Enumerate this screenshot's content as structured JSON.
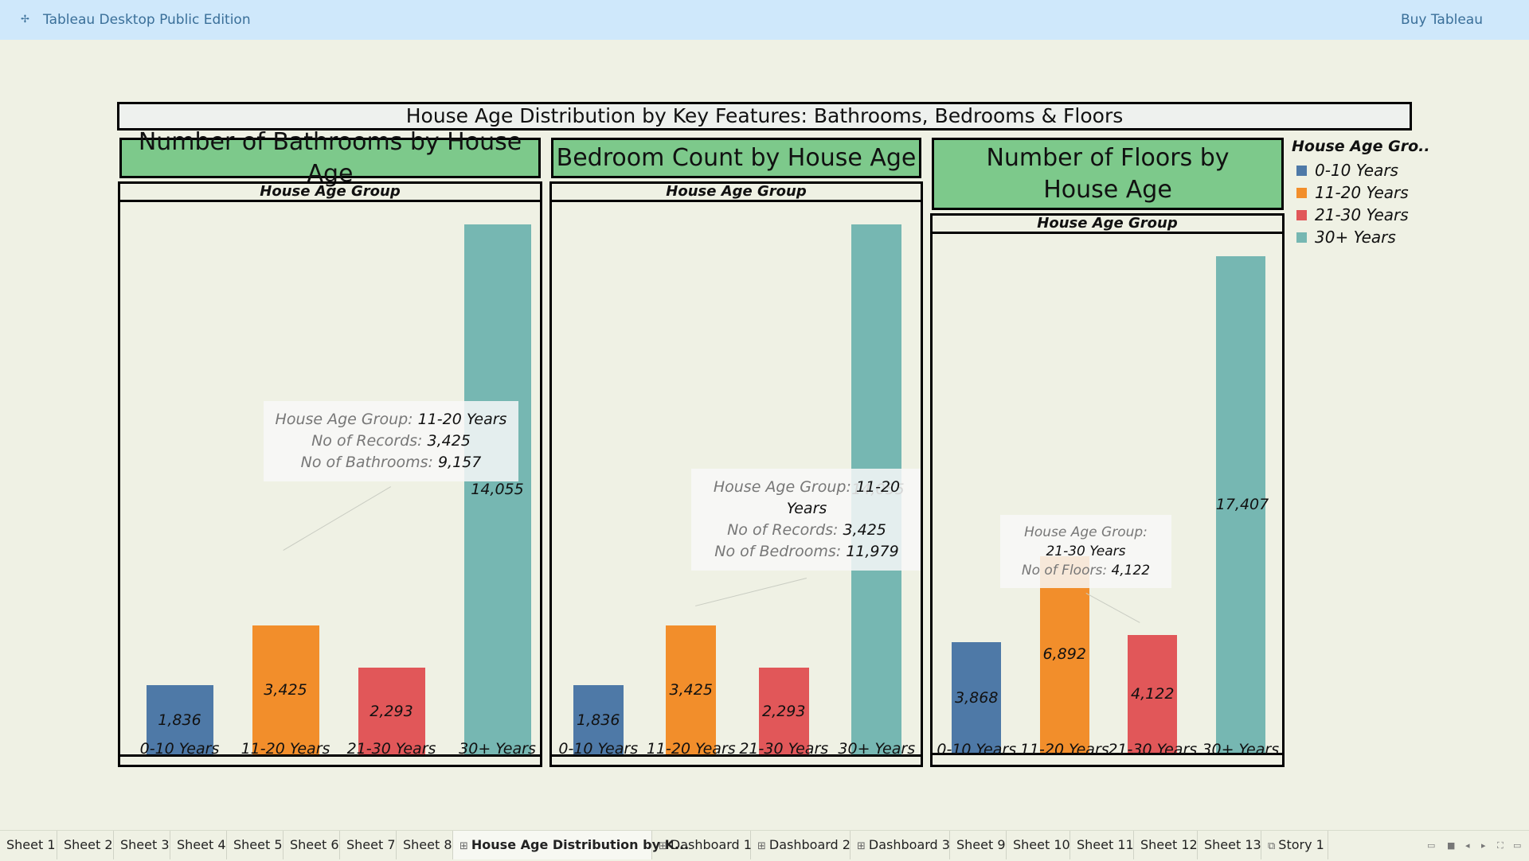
{
  "app": {
    "logo_icon": "tableau-logo-icon",
    "title": "Tableau Desktop Public Edition",
    "buy_label": "Buy Tableau"
  },
  "dashboard": {
    "title": "House Age Distribution by Key Features: Bathrooms, Bedrooms & Floors"
  },
  "colors": {
    "0-10 Years": "#4e79a7",
    "11-20 Years": "#f28e2b",
    "21-30 Years": "#e15759",
    "30+ Years": "#76b7b2",
    "title_green": "#7dc98b"
  },
  "legend": {
    "title": "House Age Gro..",
    "items": [
      "0-10 Years",
      "11-20 Years",
      "21-30 Years",
      "30+ Years"
    ]
  },
  "chart_data": [
    {
      "type": "bar",
      "title": "Number of Bathrooms by House Age",
      "header": "House Age Group",
      "categories": [
        "0-10 Years",
        "11-20 Years",
        "21-30 Years",
        "30+ Years"
      ],
      "values": [
        1836,
        3425,
        2293,
        14055
      ],
      "labels": [
        "1,836",
        "3,425",
        "2,293",
        "14,055"
      ],
      "tooltip": {
        "category_index": 1,
        "lines": [
          {
            "key": "House Age Group:",
            "value": "11-20 Years"
          },
          {
            "key": "No of Records:",
            "value": "3,425"
          },
          {
            "key": "No of Bathrooms:",
            "value": "9,157"
          }
        ]
      }
    },
    {
      "type": "bar",
      "title": "Bedroom Count by House Age",
      "header": "House Age Group",
      "categories": [
        "0-10 Years",
        "11-20 Years",
        "21-30 Years",
        "30+ Years"
      ],
      "values": [
        1836,
        3425,
        2293,
        14055
      ],
      "labels": [
        "1,836",
        "3,425",
        "2,293",
        "14,055"
      ],
      "tooltip": {
        "category_index": 1,
        "lines": [
          {
            "key": "House Age Group:",
            "value": "11-20 Years"
          },
          {
            "key": "No of Records:",
            "value": "3,425"
          },
          {
            "key": "No of Bedrooms:",
            "value": "11,979"
          }
        ]
      }
    },
    {
      "type": "bar",
      "title": "Number of Floors by House Age",
      "header": "House Age Group",
      "categories": [
        "0-10 Years",
        "11-20 Years",
        "21-30 Years",
        "30+ Years"
      ],
      "values": [
        3868,
        6892,
        4122,
        17407
      ],
      "labels": [
        "3,868",
        "6,892",
        "4,122",
        "17,407"
      ],
      "tooltip": {
        "category_index": 2,
        "lines": [
          {
            "key": "House Age Group:",
            "value": ""
          },
          {
            "key": "",
            "value": "21-30 Years"
          },
          {
            "key": "No of Floors:",
            "value": "4,122"
          }
        ]
      }
    }
  ],
  "tabs": [
    {
      "label": "Sheet 1",
      "icon": ""
    },
    {
      "label": "Sheet 2",
      "icon": ""
    },
    {
      "label": "Sheet 3",
      "icon": ""
    },
    {
      "label": "Sheet 4",
      "icon": ""
    },
    {
      "label": "Sheet 5",
      "icon": ""
    },
    {
      "label": "Sheet 6",
      "icon": ""
    },
    {
      "label": "Sheet 7",
      "icon": ""
    },
    {
      "label": "Sheet 8",
      "icon": ""
    },
    {
      "label": "House Age Distribution by K...",
      "icon": "dashboard-icon",
      "active": true
    },
    {
      "label": "Dashboard 1",
      "icon": "dashboard-icon"
    },
    {
      "label": "Dashboard 2",
      "icon": "dashboard-icon"
    },
    {
      "label": "Dashboard 3",
      "icon": "dashboard-icon"
    },
    {
      "label": "Sheet 9",
      "icon": ""
    },
    {
      "label": "Sheet 10",
      "icon": ""
    },
    {
      "label": "Sheet 11",
      "icon": ""
    },
    {
      "label": "Sheet 12",
      "icon": ""
    },
    {
      "label": "Sheet 13",
      "icon": ""
    },
    {
      "label": "Story 1",
      "icon": "story-icon"
    }
  ],
  "nav_controls": [
    "show-filmstrip-icon",
    "show-tabs-icon",
    "prev-sheet-icon",
    "next-sheet-icon",
    "fullscreen-icon",
    "presentation-icon"
  ]
}
